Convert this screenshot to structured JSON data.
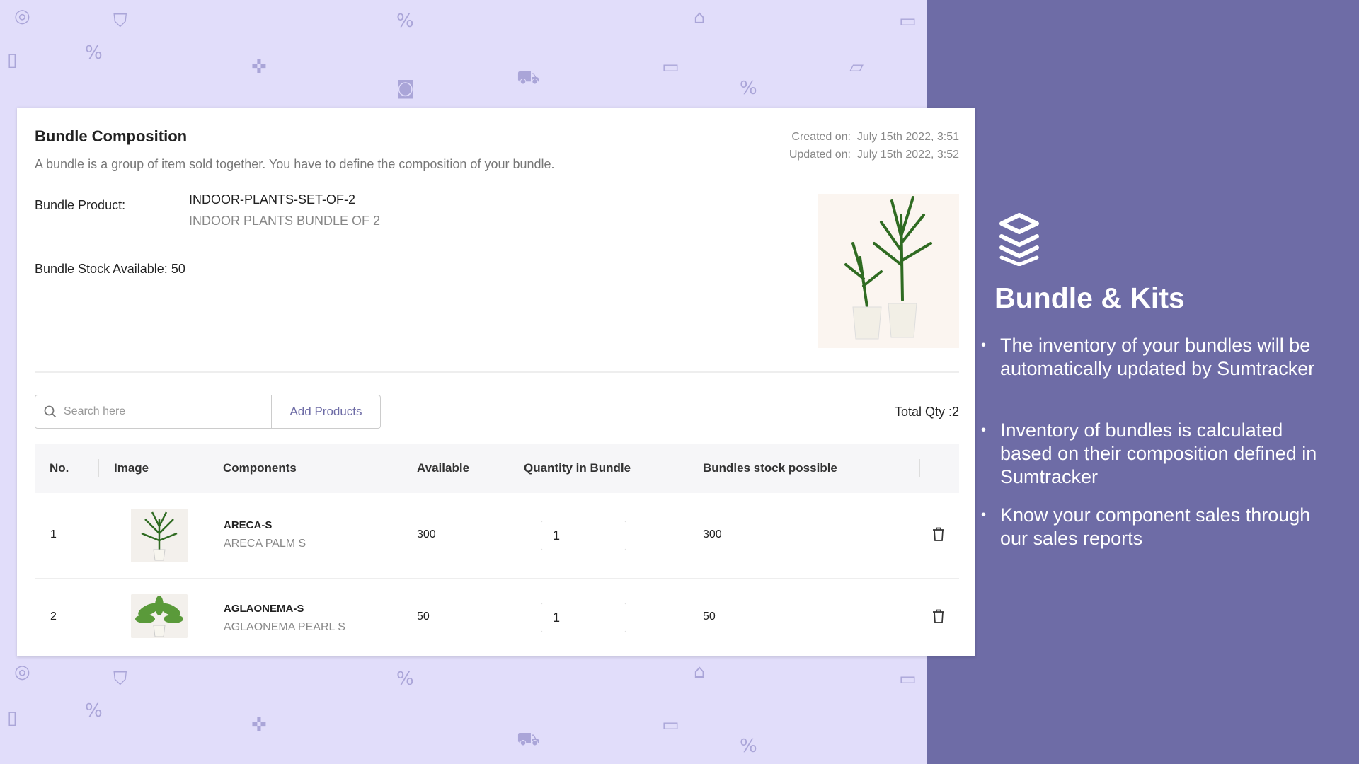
{
  "card": {
    "title": "Bundle Composition",
    "description": "A bundle is a group of item sold together. You have to define the composition of your bundle.",
    "created_label": "Created on:",
    "created_value": "July 15th 2022, 3:51",
    "updated_label": "Updated on:",
    "updated_value": "July 15th 2022, 3:52",
    "bundle_product_label": "Bundle Product:",
    "bundle_sku": "INDOOR-PLANTS-SET-OF-2",
    "bundle_name": "INDOOR PLANTS BUNDLE OF 2",
    "stock_label": "Bundle Stock Available:",
    "stock_value": "50",
    "search_placeholder": "Search here",
    "add_products": "Add Products",
    "total_qty": "Total Qty :2",
    "columns": [
      "No.",
      "Image",
      "Components",
      "Available",
      "Quantity in Bundle",
      "Bundles stock possible"
    ],
    "rows": [
      {
        "no": "1",
        "sku": "ARECA-S",
        "name": "ARECA PALM S",
        "available": "300",
        "qty": "1",
        "possible": "300"
      },
      {
        "no": "2",
        "sku": "AGLAONEMA-S",
        "name": "AGLAONEMA PEARL S",
        "available": "50",
        "qty": "1",
        "possible": "50"
      }
    ]
  },
  "panel": {
    "icon": "layers-icon",
    "title": "Bundle & Kits",
    "bullets": [
      "The inventory of your bundles will be automatically updated by Sumtracker",
      "Inventory of bundles is calculated based on their composition defined in Sumtracker",
      "Know your component sales through our sales reports"
    ]
  },
  "colors": {
    "panel_bg": "#6e6ca6",
    "pattern_bg": "#e1ddfa",
    "accent": "#6e6ca6"
  }
}
